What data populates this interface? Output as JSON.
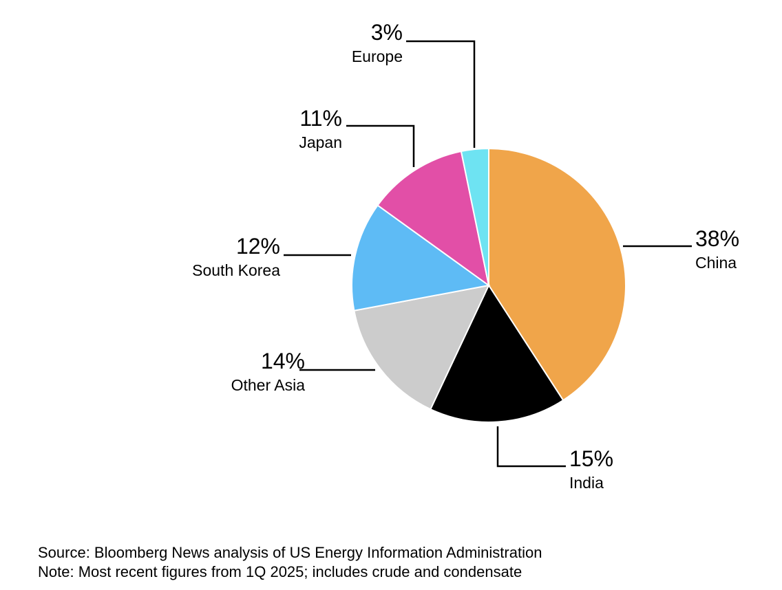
{
  "chart_data": {
    "type": "pie",
    "categories": [
      "China",
      "India",
      "Other Asia",
      "South Korea",
      "Japan",
      "Europe"
    ],
    "values": [
      38,
      15,
      14,
      12,
      11,
      3
    ],
    "value_labels": [
      "38%",
      "15%",
      "14%",
      "12%",
      "11%",
      "3%"
    ],
    "colors": [
      "#f0a54a",
      "#000000",
      "#cccccc",
      "#5ebbf5",
      "#e24fa7",
      "#6ee3f2"
    ],
    "source": "Source: Bloomberg News analysis of US Energy Information Administration",
    "note": "Note: Most recent figures from 1Q 2025; includes crude and condensate"
  }
}
